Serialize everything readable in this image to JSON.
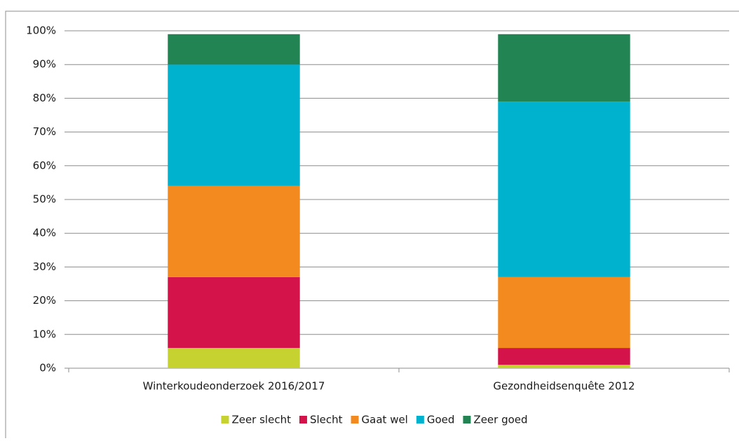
{
  "chart_data": {
    "type": "stacked_bar",
    "categories": [
      "Winterkoudeonderzoek 2016/2017",
      "Gezondheidsenquête 2012"
    ],
    "series": [
      {
        "name": "Zeer slecht",
        "color": "#c5d22f",
        "values": [
          6,
          1
        ]
      },
      {
        "name": "Slecht",
        "color": "#d3134a",
        "values": [
          21,
          5
        ]
      },
      {
        "name": "Gaat wel",
        "color": "#f38a20",
        "values": [
          27,
          21
        ]
      },
      {
        "name": "Goed",
        "color": "#00b2ce",
        "values": [
          36,
          52
        ]
      },
      {
        "name": "Zeer goed",
        "color": "#238453",
        "values": [
          9,
          20
        ]
      }
    ],
    "ylim": [
      0,
      100
    ],
    "yticks": [
      {
        "value": 0,
        "label": "0%"
      },
      {
        "value": 10,
        "label": "10%"
      },
      {
        "value": 20,
        "label": "20%"
      },
      {
        "value": 30,
        "label": "30%"
      },
      {
        "value": 40,
        "label": "40%"
      },
      {
        "value": 50,
        "label": "50%"
      },
      {
        "value": 60,
        "label": "60%"
      },
      {
        "value": 70,
        "label": "70%"
      },
      {
        "value": 80,
        "label": "80%"
      },
      {
        "value": 90,
        "label": "90%"
      },
      {
        "value": 100,
        "label": "100%"
      }
    ],
    "grid": true,
    "legend": "bottom"
  }
}
